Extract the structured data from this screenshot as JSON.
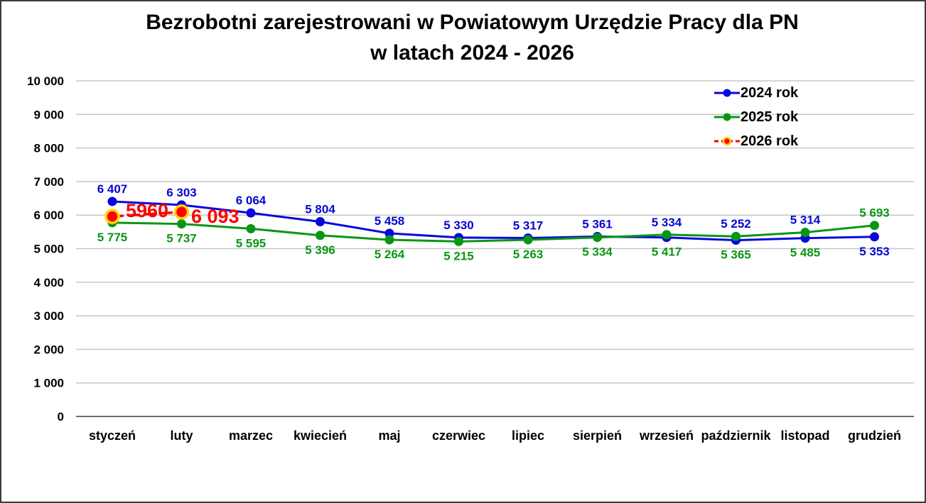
{
  "chart": {
    "title_lines": {
      "0": "Bezrobotni zarejestrowani w Powiatowym Urzędzie Pracy dla PN",
      "1": "w latach 2024 - 2026"
    }
  },
  "chart_data": {
    "type": "line",
    "title": "Bezrobotni zarejestrowani w Powiatowym Urzędzie Pracy dla PN w latach 2024 - 2026",
    "categories": [
      "styczeń",
      "luty",
      "marzec",
      "kwiecień",
      "maj",
      "czerwiec",
      "lipiec",
      "sierpień",
      "wrzesień",
      "październik",
      "listopad",
      "grudzień"
    ],
    "series": [
      {
        "name": "2024 rok",
        "color": "#0707DE",
        "label_color": "#0606D2",
        "values": [
          6407,
          6303,
          6064,
          5804,
          5458,
          5330,
          5317,
          5361,
          5334,
          5252,
          5314,
          5353
        ],
        "labels": [
          "6 407",
          "6 303",
          "6 064",
          "5 804",
          "5 458",
          "5 330",
          "5 317",
          "5 361",
          "5 334",
          "5 252",
          "5 314",
          "5 353"
        ],
        "label_side": "above",
        "flip_indices": [
          11
        ]
      },
      {
        "name": "2025 rok",
        "color": "#0A9614",
        "label_color": "#0A9614",
        "values": [
          5775,
          5737,
          5595,
          5396,
          5264,
          5215,
          5263,
          5334,
          5417,
          5365,
          5485,
          5693
        ],
        "labels": [
          "5 775",
          "5 737",
          "5 595",
          "5 396",
          "5 264",
          "5 215",
          "5 263",
          "5 334",
          "5 417",
          "5 365",
          "5 485",
          "5 693"
        ],
        "label_side": "below",
        "flip_indices": [
          11
        ]
      },
      {
        "name": "2026 rok",
        "color": "#FE0000",
        "label_color": "#FE0000",
        "marker_ring": "#FFD400",
        "dashed": true,
        "emphasis": true,
        "values": [
          5960,
          6093,
          null,
          null,
          null,
          null,
          null,
          null,
          null,
          null,
          null,
          null
        ],
        "labels": [
          "5960",
          "6 093"
        ],
        "label_layout": "custom",
        "label_pos": [
          {
            "x": 205,
            "y": 304,
            "anchor": "middle"
          },
          {
            "x": 267,
            "y": 312,
            "anchor": "start"
          }
        ]
      }
    ],
    "ylim": [
      0,
      10000
    ],
    "ytick_values": [
      0,
      1000,
      2000,
      3000,
      4000,
      5000,
      6000,
      7000,
      8000,
      9000,
      10000
    ],
    "ytick_labels": [
      "0",
      "1 000",
      "2 000",
      "3 000",
      "4 000",
      "5 000",
      "6 000",
      "7 000",
      "8 000",
      "9 000",
      "10 000"
    ],
    "grid": true,
    "grid_color": "#C6C6C6",
    "axis_color": "#6E6E6E",
    "legend_position": "top-right"
  }
}
